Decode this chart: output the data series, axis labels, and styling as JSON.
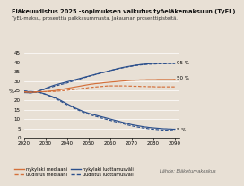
{
  "title": "Eläkeuudistus 2025 -sopimuksen vaikutus työeläkemaksuun (TyEL)",
  "subtitle": "TyEL-maksu, prosenttia palkkasummasta. Jakauman prosenttipisteitä.",
  "ylabel": "%",
  "source": "Lähde: Eläketurvakeskus",
  "ylim": [
    0,
    47
  ],
  "xlim": [
    2020,
    2092
  ],
  "yticks": [
    0,
    5,
    10,
    15,
    20,
    25,
    30,
    35,
    40,
    45
  ],
  "xticks": [
    2020,
    2030,
    2040,
    2050,
    2060,
    2070,
    2080,
    2090
  ],
  "label_95": "95 %",
  "label_50_upper": "50 %",
  "label_5": "5 %",
  "orange_solid_label": "nykylaki mediaani",
  "orange_dash_label": "uudistus mediaani",
  "blue_solid_label": "nykylaki luottamusväli",
  "blue_dash_label": "uudistus luottamusväli",
  "color_orange": "#D4703A",
  "color_blue": "#2B4F8C",
  "bg_color": "#E8E0D5",
  "grid_color": "#FFFFFF",
  "x": [
    2020,
    2021,
    2022,
    2023,
    2024,
    2025,
    2026,
    2027,
    2028,
    2029,
    2030,
    2031,
    2032,
    2033,
    2034,
    2035,
    2036,
    2037,
    2038,
    2039,
    2040,
    2041,
    2042,
    2043,
    2044,
    2045,
    2046,
    2047,
    2048,
    2049,
    2050,
    2051,
    2052,
    2053,
    2054,
    2055,
    2056,
    2057,
    2058,
    2059,
    2060,
    2061,
    2062,
    2063,
    2064,
    2065,
    2066,
    2067,
    2068,
    2069,
    2070,
    2071,
    2072,
    2073,
    2074,
    2075,
    2076,
    2077,
    2078,
    2079,
    2080,
    2081,
    2082,
    2083,
    2084,
    2085,
    2086,
    2087,
    2088,
    2089,
    2090
  ],
  "nykylaki_median": [
    24.4,
    24.3,
    24.2,
    24.2,
    24.2,
    24.3,
    24.4,
    24.5,
    24.5,
    24.5,
    24.6,
    24.7,
    24.8,
    24.9,
    25.0,
    25.2,
    25.4,
    25.6,
    25.8,
    26.0,
    26.2,
    26.4,
    26.6,
    26.8,
    27.0,
    27.2,
    27.4,
    27.6,
    27.8,
    28.0,
    28.2,
    28.4,
    28.5,
    28.7,
    28.8,
    28.9,
    29.0,
    29.2,
    29.3,
    29.4,
    29.5,
    29.6,
    29.7,
    29.8,
    29.9,
    30.0,
    30.1,
    30.2,
    30.3,
    30.4,
    30.5,
    30.5,
    30.6,
    30.6,
    30.7,
    30.7,
    30.7,
    30.8,
    30.8,
    30.8,
    30.8,
    30.8,
    30.9,
    30.9,
    30.9,
    30.9,
    30.9,
    30.9,
    30.9,
    30.9,
    31.0
  ],
  "uudistus_median": [
    24.4,
    24.3,
    24.2,
    24.2,
    24.2,
    24.3,
    24.4,
    24.5,
    24.5,
    24.5,
    24.5,
    24.5,
    24.6,
    24.6,
    24.6,
    24.7,
    24.8,
    24.9,
    25.0,
    25.1,
    25.2,
    25.4,
    25.5,
    25.6,
    25.7,
    25.9,
    26.0,
    26.2,
    26.3,
    26.4,
    26.6,
    26.7,
    26.8,
    26.9,
    27.0,
    27.1,
    27.2,
    27.3,
    27.4,
    27.5,
    27.5,
    27.5,
    27.5,
    27.5,
    27.5,
    27.5,
    27.5,
    27.5,
    27.4,
    27.4,
    27.4,
    27.3,
    27.3,
    27.3,
    27.2,
    27.2,
    27.2,
    27.1,
    27.1,
    27.1,
    27.1,
    27.0,
    27.0,
    27.0,
    27.0,
    27.0,
    27.0,
    27.0,
    27.0,
    27.0,
    27.0
  ],
  "nykylaki_upper": [
    24.0,
    24.0,
    23.9,
    23.9,
    24.0,
    24.2,
    24.5,
    24.9,
    25.3,
    25.7,
    26.2,
    26.7,
    27.1,
    27.5,
    27.9,
    28.2,
    28.5,
    28.8,
    29.1,
    29.4,
    29.7,
    30.0,
    30.3,
    30.6,
    30.9,
    31.2,
    31.5,
    31.8,
    32.1,
    32.4,
    32.7,
    33.0,
    33.3,
    33.6,
    33.9,
    34.2,
    34.5,
    34.8,
    35.0,
    35.3,
    35.6,
    35.9,
    36.2,
    36.5,
    36.8,
    37.0,
    37.3,
    37.5,
    37.7,
    37.9,
    38.1,
    38.3,
    38.5,
    38.6,
    38.8,
    38.9,
    39.0,
    39.1,
    39.2,
    39.3,
    39.4,
    39.4,
    39.4,
    39.5,
    39.5,
    39.5,
    39.5,
    39.5,
    39.5,
    39.5,
    39.5
  ],
  "nykylaki_lower": [
    24.8,
    24.7,
    24.5,
    24.5,
    24.5,
    24.4,
    24.3,
    24.1,
    23.8,
    23.5,
    23.1,
    22.7,
    22.3,
    21.9,
    21.4,
    20.9,
    20.4,
    19.8,
    19.2,
    18.6,
    18.0,
    17.4,
    16.8,
    16.2,
    15.7,
    15.2,
    14.7,
    14.2,
    13.8,
    13.4,
    13.0,
    12.7,
    12.4,
    12.1,
    11.8,
    11.5,
    11.2,
    10.9,
    10.6,
    10.3,
    10.0,
    9.7,
    9.4,
    9.1,
    8.8,
    8.5,
    8.2,
    7.9,
    7.6,
    7.3,
    7.0,
    6.8,
    6.6,
    6.4,
    6.2,
    6.0,
    5.8,
    5.7,
    5.5,
    5.4,
    5.3,
    5.2,
    5.1,
    5.0,
    4.9,
    4.8,
    4.8,
    4.7,
    4.7,
    4.6,
    4.6
  ],
  "uudistus_upper": [
    24.0,
    24.0,
    23.9,
    23.9,
    24.0,
    24.2,
    24.5,
    24.9,
    25.3,
    25.6,
    26.0,
    26.4,
    26.7,
    27.0,
    27.3,
    27.6,
    27.9,
    28.2,
    28.5,
    28.8,
    29.1,
    29.5,
    29.8,
    30.2,
    30.5,
    30.9,
    31.2,
    31.6,
    31.9,
    32.2,
    32.6,
    32.9,
    33.2,
    33.5,
    33.8,
    34.1,
    34.4,
    34.7,
    35.0,
    35.3,
    35.6,
    35.9,
    36.1,
    36.4,
    36.7,
    36.9,
    37.1,
    37.3,
    37.5,
    37.7,
    37.9,
    38.1,
    38.3,
    38.4,
    38.6,
    38.7,
    38.8,
    38.9,
    39.0,
    39.0,
    39.1,
    39.1,
    39.2,
    39.2,
    39.2,
    39.2,
    39.2,
    39.3,
    39.3,
    39.3,
    39.3
  ],
  "uudistus_lower": [
    24.8,
    24.7,
    24.5,
    24.5,
    24.5,
    24.4,
    24.3,
    24.1,
    23.8,
    23.4,
    23.0,
    22.6,
    22.1,
    21.6,
    21.1,
    20.5,
    19.9,
    19.3,
    18.7,
    18.1,
    17.5,
    16.9,
    16.4,
    15.8,
    15.3,
    14.8,
    14.3,
    13.8,
    13.3,
    12.9,
    12.5,
    12.1,
    11.8,
    11.5,
    11.2,
    10.8,
    10.5,
    10.2,
    9.9,
    9.6,
    9.3,
    9.0,
    8.7,
    8.4,
    8.1,
    7.8,
    7.5,
    7.2,
    6.9,
    6.6,
    6.4,
    6.1,
    5.9,
    5.7,
    5.5,
    5.3,
    5.1,
    5.0,
    4.8,
    4.7,
    4.6,
    4.5,
    4.4,
    4.3,
    4.2,
    4.1,
    4.1,
    4.0,
    4.0,
    3.9,
    3.9
  ]
}
